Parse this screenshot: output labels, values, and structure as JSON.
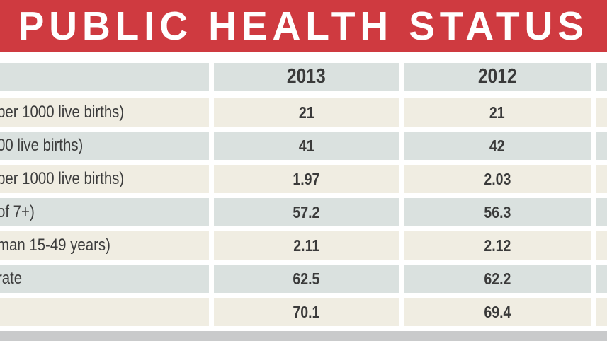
{
  "banner": {
    "title": "PUBLIC HEALTH STATUS"
  },
  "table": {
    "col_label": "",
    "col_2013": "2013",
    "col_2012": "2012",
    "rows": [
      {
        "label": "per 1000 live births)",
        "v2013": "21",
        "v2012": "21"
      },
      {
        "label": "00 live births)",
        "v2013": "41",
        "v2012": "42"
      },
      {
        "label": "per 1000 live births)",
        "v2013": "1.97",
        "v2012": "2.03"
      },
      {
        "label": "of 7+)",
        "v2013": "57.2",
        "v2012": "56.3"
      },
      {
        "label": "man 15-49 years)",
        "v2013": "2.11",
        "v2012": "2.12"
      },
      {
        "label": "rate",
        "v2013": "62.5",
        "v2012": "62.2"
      },
      {
        "label": "",
        "v2013": "70.1",
        "v2012": "69.4"
      }
    ]
  },
  "colors": {
    "banner_red": "#cf3a40",
    "row_cream": "#f0ede2",
    "row_gray": "#dae1df",
    "bottom_bar": "#c9cacb",
    "text_dark": "#3a3a3a",
    "title_text": "#ffffff"
  },
  "chart_data": {
    "type": "table",
    "title": "PUBLIC HEALTH STATUS",
    "columns": [
      "",
      "2013",
      "2012"
    ],
    "rows": [
      [
        "per 1000 live births)",
        21,
        21
      ],
      [
        "00 live births)",
        41,
        42
      ],
      [
        "per 1000 live births)",
        1.97,
        2.03
      ],
      [
        "of 7+)",
        57.2,
        56.3
      ],
      [
        "man 15-49 years)",
        2.11,
        2.12
      ],
      [
        "rate",
        62.5,
        62.2
      ],
      [
        "",
        70.1,
        69.4
      ]
    ],
    "notes": "Infographic table cropped at left (row labels truncated) and right (a third year column is only partially visible)."
  }
}
